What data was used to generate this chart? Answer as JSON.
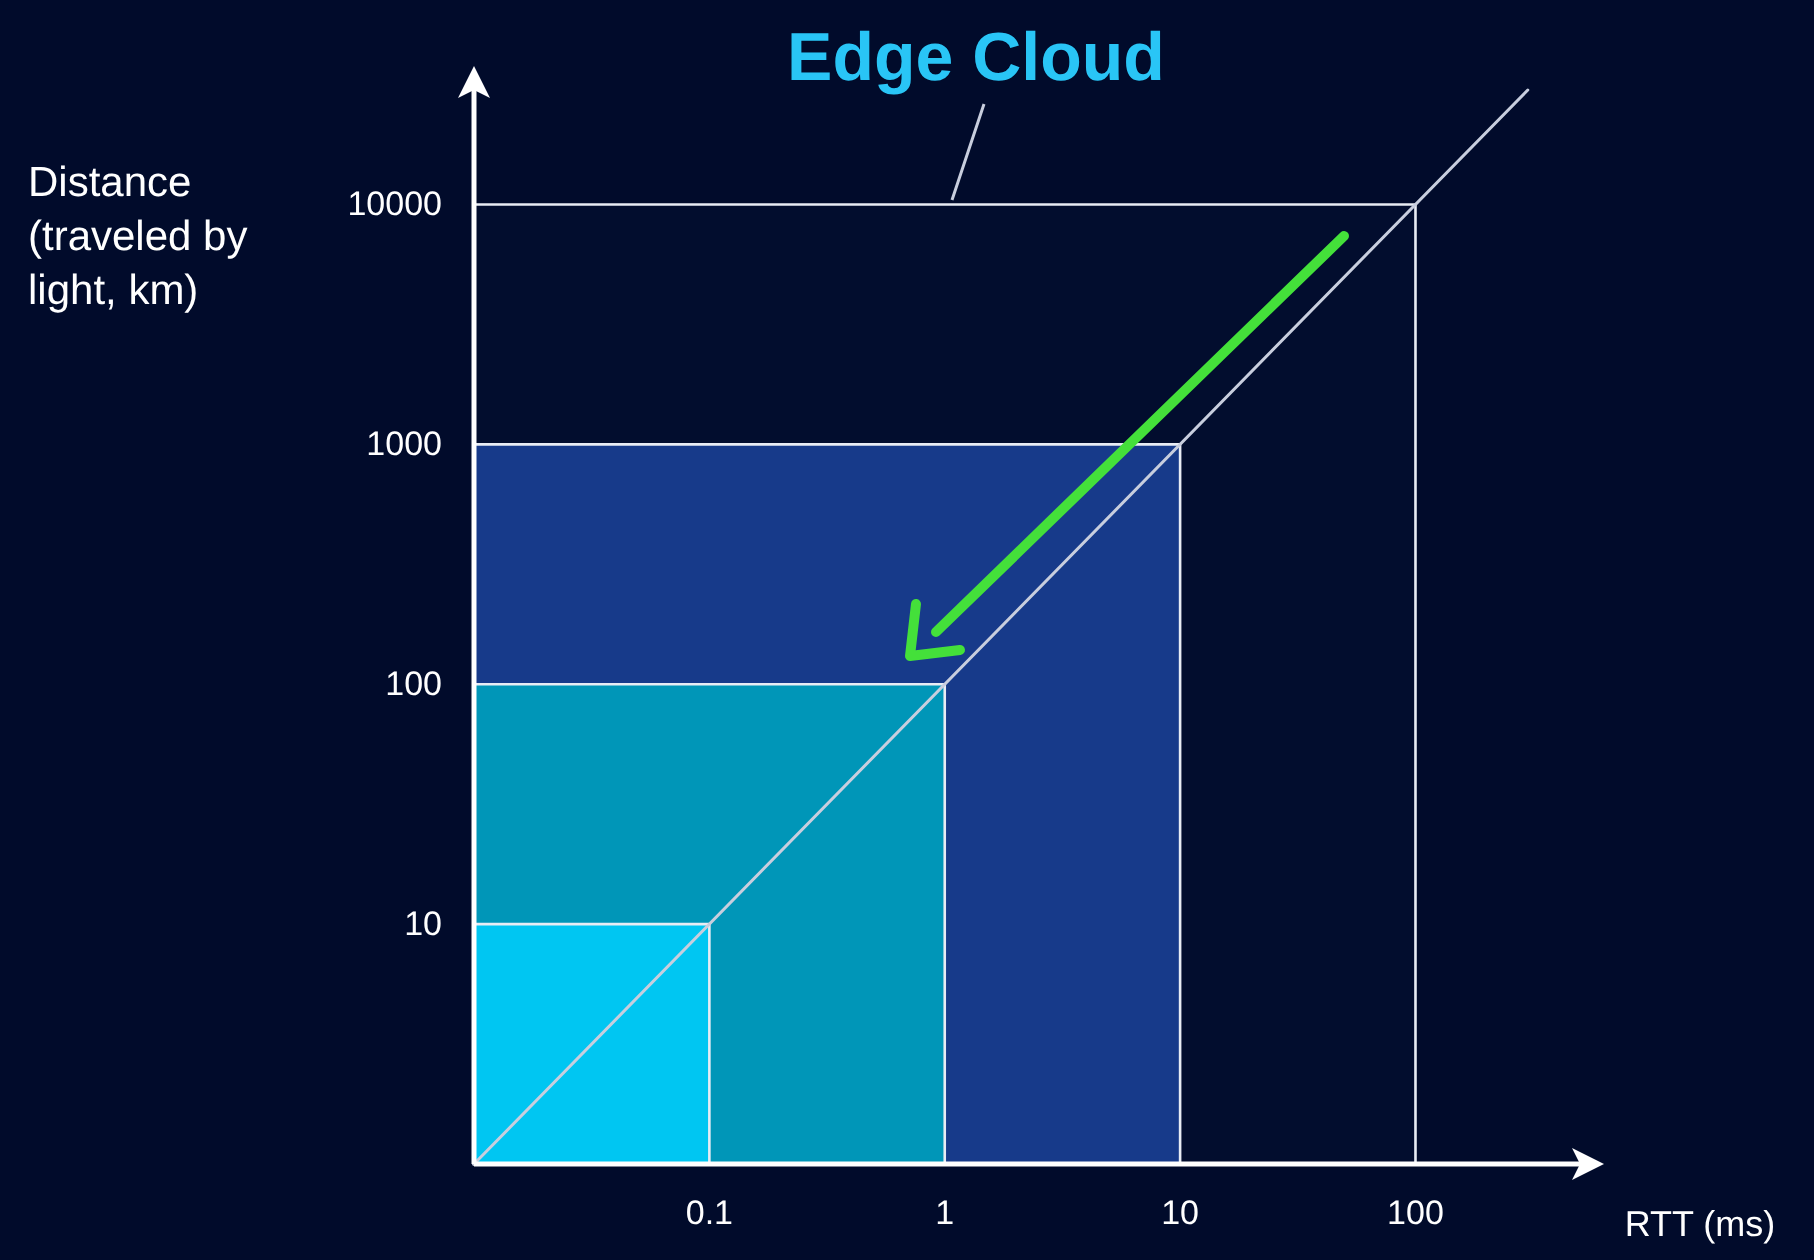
{
  "chart_data": {
    "type": "line",
    "title": "Edge Cloud",
    "xlabel": "RTT (ms)",
    "ylabel": "Distance (traveled by light, km)",
    "log": "xy",
    "xlim": [
      0.01,
      500
    ],
    "ylim": [
      1,
      30000
    ],
    "xticks": [
      0.1,
      1,
      10,
      100
    ],
    "yticks": [
      10,
      100,
      1000,
      10000
    ],
    "series": [
      {
        "type": "area",
        "color": "#020d2e",
        "x": [
          0.01,
          100
        ],
        "values": [
          10000,
          10000
        ]
      },
      {
        "type": "area",
        "color": "#173a8a",
        "x": [
          0.01,
          10
        ],
        "values": [
          1000,
          1000
        ]
      },
      {
        "type": "area",
        "color": "#0096b8",
        "x": [
          0.01,
          1
        ],
        "values": [
          100,
          100
        ]
      },
      {
        "type": "area",
        "color": "#00c6f2",
        "x": [
          0.01,
          0.1
        ],
        "values": [
          10,
          10
        ]
      },
      {
        "color": "#c8cede",
        "x": [
          0.01,
          300
        ],
        "values": [
          1,
          30000
        ]
      }
    ]
  }
}
